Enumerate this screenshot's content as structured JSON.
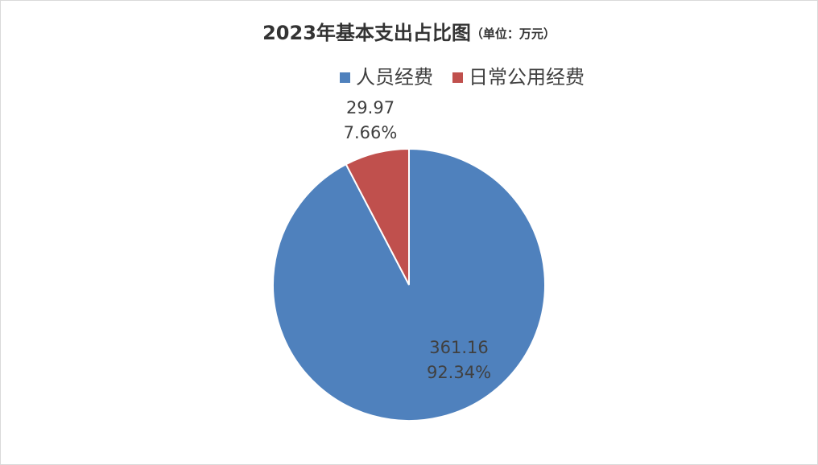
{
  "chart_data": {
    "type": "pie",
    "title": "2023年基本支出占比图",
    "subtitle": "（单位：万元）",
    "categories": [
      "人员经费",
      "日常公用经费"
    ],
    "values": [
      361.16,
      29.97
    ],
    "percentages": [
      92.34,
      7.66
    ],
    "percentage_labels": [
      "92.34%",
      "7.66%"
    ],
    "colors": [
      "#4f81bd",
      "#c0504d"
    ],
    "legend": "top"
  }
}
